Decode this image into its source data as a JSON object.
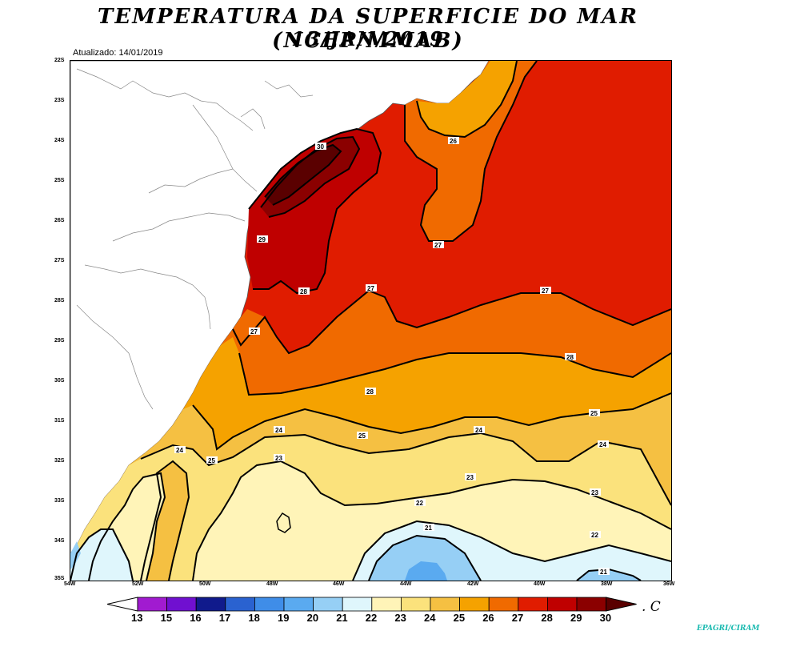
{
  "title_line1": "TEMPERATURA DA SUPERFICIE DO MAR (NCEP/MMAB)",
  "title_line2": "13/JAN/2019",
  "updated": "Atualizado: 14/01/2019",
  "latitude_labels": [
    "22S",
    "23S",
    "24S",
    "25S",
    "26S",
    "27S",
    "28S",
    "29S",
    "30S",
    "31S",
    "32S",
    "33S",
    "34S",
    "35S"
  ],
  "longitude_labels": [
    "54W",
    "52W",
    "50W",
    "48W",
    "46W",
    "44W",
    "42W",
    "40W",
    "38W",
    "36W"
  ],
  "contour_labels": {
    "c30": "30",
    "c29": "29",
    "c28a": "28",
    "c28b": "28",
    "c28c": "28",
    "c27a": "27",
    "c27b": "27",
    "c27c": "27",
    "c27d": "27",
    "c26": "26",
    "c25a": "25",
    "c25b": "25",
    "c25c": "25",
    "c24a": "24",
    "c24b": "24",
    "c24c": "24",
    "c24d": "24",
    "c23a": "23",
    "c23b": "23",
    "c23c": "23",
    "c22a": "22",
    "c22b": "22",
    "c21a": "21",
    "c21b": "21"
  },
  "colorbar": {
    "labels": [
      "13",
      "15",
      "16",
      "17",
      "18",
      "19",
      "20",
      "21",
      "22",
      "23",
      "24",
      "25",
      "26",
      "27",
      "28",
      "29",
      "30"
    ],
    "colors": [
      "#ffffff",
      "#a11bd0",
      "#7010d0",
      "#101a8c",
      "#2a62d0",
      "#3f8de8",
      "#5aaaf0",
      "#96cff5",
      "#dff6fc",
      "#fff4b8",
      "#fbe27c",
      "#f5c042",
      "#f5a200",
      "#f06a00",
      "#e01c00",
      "#bf0000",
      "#8b0000",
      "#5a0000"
    ]
  },
  "unit": ". C",
  "credit": "EPAGRI/CIRAM"
}
